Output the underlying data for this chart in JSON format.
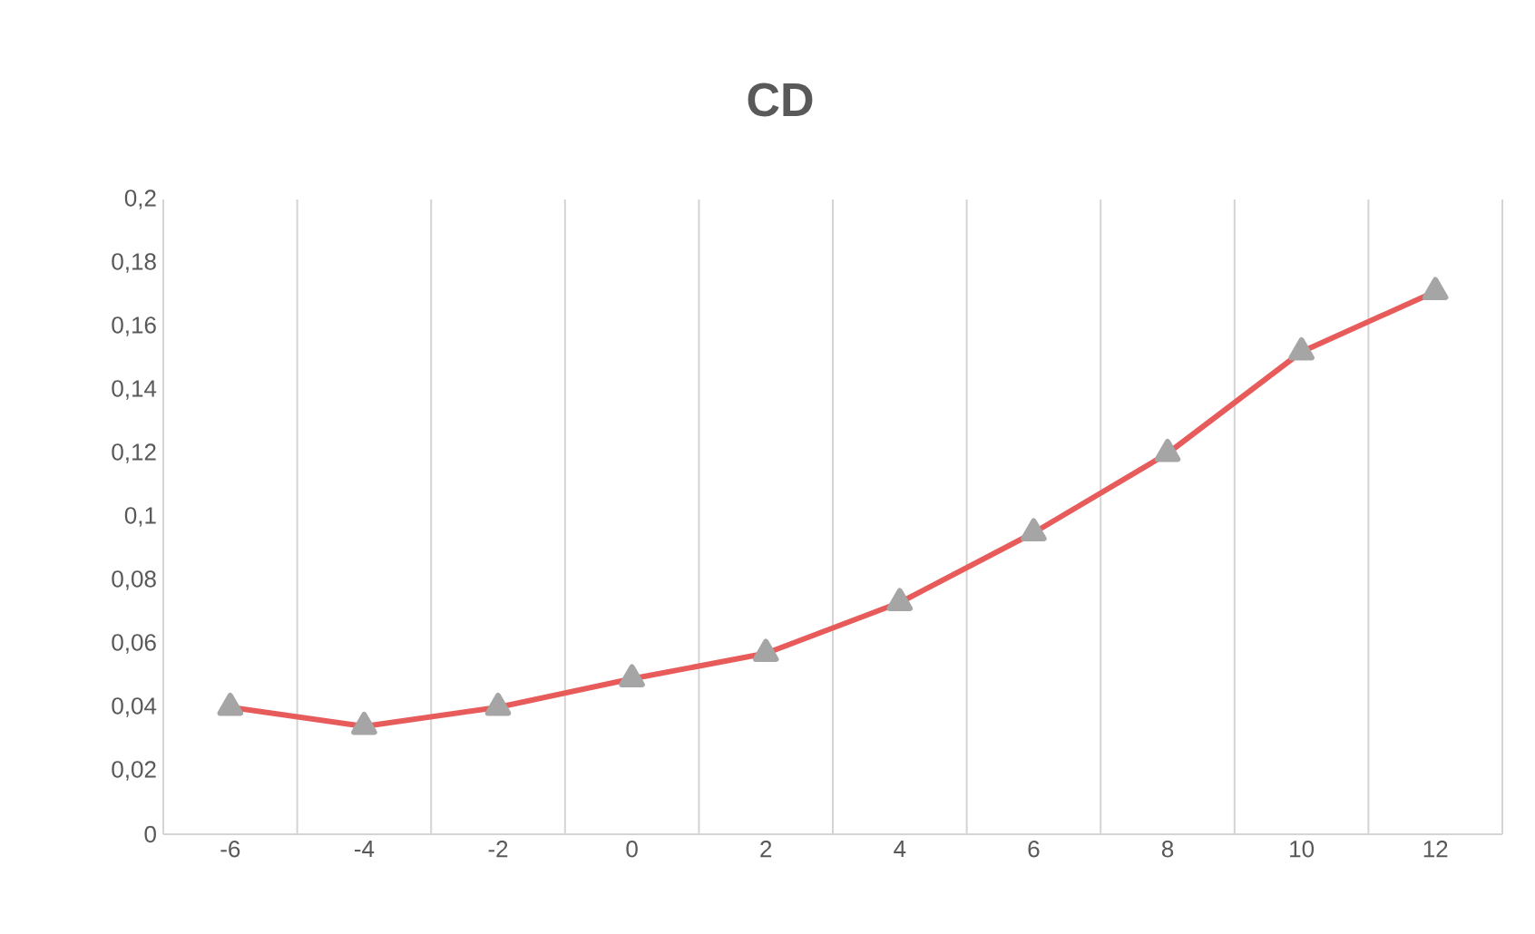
{
  "chart_data": {
    "type": "line",
    "title": "CD",
    "categories": [
      "-6",
      "-4",
      "-2",
      "0",
      "2",
      "4",
      "6",
      "8",
      "10",
      "12"
    ],
    "series": [
      {
        "color": "#e85b5b",
        "values": [
          0.04,
          0.034,
          0.04,
          0.049,
          0.057,
          0.073,
          0.095,
          0.12,
          0.152,
          0.171
        ]
      }
    ],
    "ylim": [
      0,
      0.2
    ],
    "yticks": [
      {
        "value": 0,
        "label": "0"
      },
      {
        "value": 0.02,
        "label": "0,02"
      },
      {
        "value": 0.04,
        "label": "0,04"
      },
      {
        "value": 0.06,
        "label": "0,06"
      },
      {
        "value": 0.08,
        "label": "0,08"
      },
      {
        "value": 0.1,
        "label": "0,1"
      },
      {
        "value": 0.12,
        "label": "0,12"
      },
      {
        "value": 0.14,
        "label": "0,14"
      },
      {
        "value": 0.16,
        "label": "0,16"
      },
      {
        "value": 0.18,
        "label": "0,18"
      },
      {
        "value": 0.2,
        "label": "0,2"
      }
    ],
    "grid": "x",
    "marker": "triangle",
    "line_style": "solid"
  }
}
